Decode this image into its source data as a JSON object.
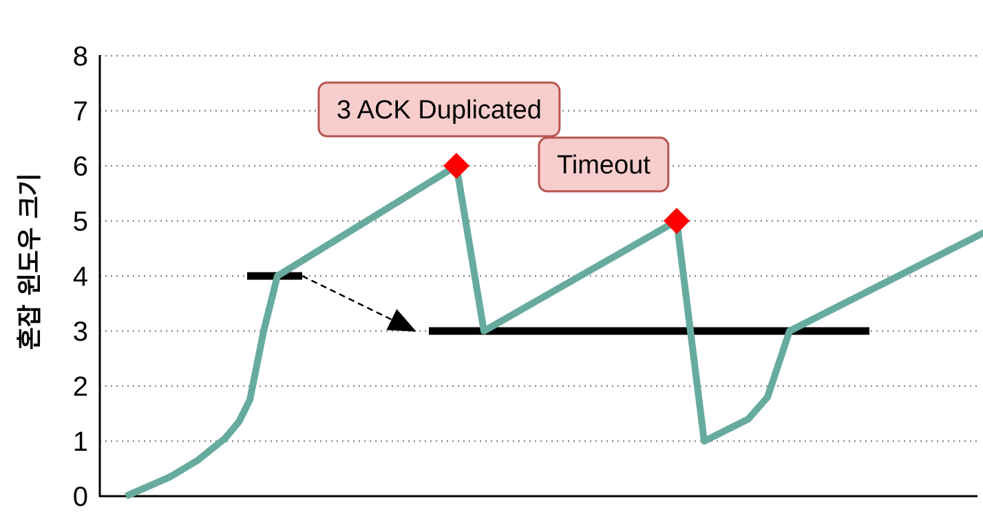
{
  "chart_data": {
    "type": "line",
    "title": "",
    "xlabel": "",
    "ylabel": "혼잡 윈도우 크기",
    "ylim": [
      0,
      8
    ],
    "y_ticks": [
      "0",
      "1",
      "2",
      "3",
      "4",
      "5",
      "6",
      "7",
      "8"
    ],
    "grid": true,
    "series": [
      {
        "name": "",
        "color": "#67AB9F",
        "points": [
          [
            0.0,
            0.0
          ],
          [
            0.8,
            0.35
          ],
          [
            1.3,
            0.65
          ],
          [
            1.8,
            1.05
          ],
          [
            2.05,
            1.35
          ],
          [
            2.25,
            1.75
          ],
          [
            2.5,
            3.0
          ],
          [
            2.75,
            4.0
          ],
          [
            6.0,
            6.0
          ],
          [
            6.5,
            3.0
          ],
          [
            10.0,
            5.0
          ],
          [
            10.5,
            1.0
          ],
          [
            11.3,
            1.4
          ],
          [
            11.65,
            1.8
          ],
          [
            12.05,
            3.0
          ],
          [
            16.0,
            5.0
          ]
        ]
      }
    ],
    "threshold_segments": [
      {
        "x_start": 2.2,
        "x_end": 3.2,
        "y": 4
      },
      {
        "x_start": 5.5,
        "x_end": 13.5,
        "y": 3
      }
    ],
    "threshold_arrow": {
      "from": [
        3.2,
        4.0
      ],
      "to": [
        5.25,
        3.0
      ]
    },
    "event_markers": [
      {
        "x": 6.0,
        "y": 6.0,
        "color": "#FF0000",
        "label": "3 ACK Duplicated"
      },
      {
        "x": 10.0,
        "y": 5.0,
        "color": "#FF0000",
        "label": "Timeout"
      }
    ],
    "annotation_style": {
      "fill": "#F8CECC",
      "border": "#B85450"
    }
  }
}
